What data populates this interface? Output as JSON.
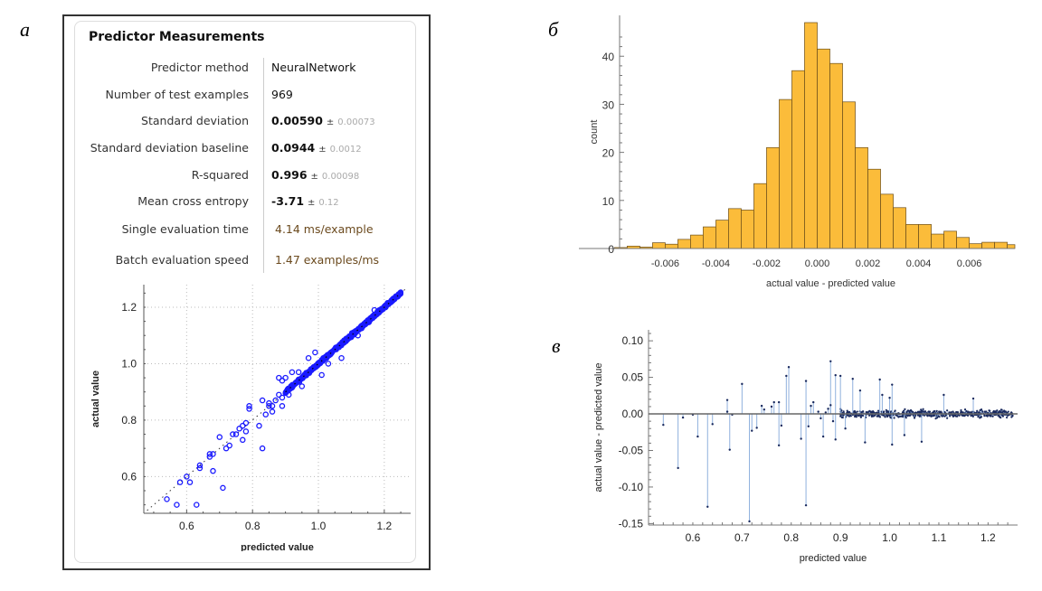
{
  "panel_labels": {
    "a": "а",
    "b": "б",
    "c": "в"
  },
  "measurements": {
    "title": "Predictor Measurements",
    "rows": [
      {
        "key": "Predictor method",
        "value": "NeuralNetwork",
        "pm": "",
        "unc": "",
        "timing": false
      },
      {
        "key": "Number of test examples",
        "value": "969",
        "pm": "",
        "unc": "",
        "timing": false
      },
      {
        "key": "Standard deviation",
        "value": "0.00590",
        "pm": "±",
        "unc": "0.00073",
        "timing": false
      },
      {
        "key": "Standard deviation baseline",
        "value": "0.0944",
        "pm": "±",
        "unc": "0.0012",
        "timing": false
      },
      {
        "key": "R-squared",
        "value": "0.996",
        "pm": "±",
        "unc": "0.00098",
        "timing": false
      },
      {
        "key": "Mean cross entropy",
        "value": "-3.71",
        "pm": "±",
        "unc": "0.12",
        "timing": false
      },
      {
        "key": "Single evaluation time",
        "value": "4.14 ms/example",
        "pm": "",
        "unc": "",
        "timing": true
      },
      {
        "key": "Batch evaluation speed",
        "value": "1.47 examples/ms",
        "pm": "",
        "unc": "",
        "timing": true
      }
    ]
  },
  "colors": {
    "scatter": "#1a1aff",
    "hist_fill": "#fbbc3a",
    "hist_edge": "#6b4e1a",
    "resid_line": "#8fb0dd",
    "resid_point": "#1a2a5e"
  },
  "chart_data": [
    {
      "type": "scatter",
      "title": "",
      "xlabel": "predicted value",
      "ylabel": "actual value",
      "xlim": [
        0.47,
        1.28
      ],
      "ylim": [
        0.47,
        1.28
      ],
      "xticks": [
        "0.6",
        "0.8",
        "1.0",
        "1.2"
      ],
      "yticks": [
        "0.6",
        "0.8",
        "1.0",
        "1.2"
      ],
      "grid": true,
      "reference_line": "y = x (dotted)",
      "outliers": [
        [
          0.54,
          0.52
        ],
        [
          0.57,
          0.5
        ],
        [
          0.58,
          0.58
        ],
        [
          0.6,
          0.6
        ],
        [
          0.61,
          0.58
        ],
        [
          0.63,
          0.5
        ],
        [
          0.64,
          0.63
        ],
        [
          0.64,
          0.64
        ],
        [
          0.67,
          0.68
        ],
        [
          0.67,
          0.67
        ],
        [
          0.68,
          0.62
        ],
        [
          0.68,
          0.68
        ],
        [
          0.7,
          0.74
        ],
        [
          0.71,
          0.56
        ],
        [
          0.72,
          0.7
        ],
        [
          0.73,
          0.71
        ],
        [
          0.74,
          0.75
        ],
        [
          0.75,
          0.75
        ],
        [
          0.76,
          0.77
        ],
        [
          0.77,
          0.78
        ],
        [
          0.77,
          0.73
        ],
        [
          0.78,
          0.79
        ],
        [
          0.78,
          0.76
        ],
        [
          0.79,
          0.84
        ],
        [
          0.79,
          0.85
        ],
        [
          0.82,
          0.78
        ],
        [
          0.83,
          0.7
        ],
        [
          0.83,
          0.87
        ],
        [
          0.84,
          0.82
        ],
        [
          0.85,
          0.85
        ],
        [
          0.85,
          0.86
        ],
        [
          0.86,
          0.85
        ],
        [
          0.86,
          0.83
        ],
        [
          0.87,
          0.87
        ],
        [
          0.88,
          0.95
        ],
        [
          0.88,
          0.89
        ],
        [
          0.89,
          0.94
        ],
        [
          0.89,
          0.88
        ],
        [
          0.89,
          0.85
        ],
        [
          0.9,
          0.95
        ],
        [
          0.91,
          0.89
        ],
        [
          0.92,
          0.97
        ],
        [
          0.94,
          0.97
        ],
        [
          0.95,
          0.92
        ],
        [
          0.97,
          1.02
        ],
        [
          0.99,
          1.04
        ],
        [
          1.01,
          0.96
        ],
        [
          1.03,
          1.0
        ],
        [
          1.07,
          1.02
        ],
        [
          1.12,
          1.1
        ],
        [
          1.17,
          1.19
        ]
      ],
      "dense_band": {
        "x_range": [
          0.9,
          1.25
        ],
        "spread": 0.006
      }
    },
    {
      "type": "bar",
      "title": "",
      "xlabel": "actual value - predicted value",
      "ylabel": "count",
      "xlim": [
        -0.0078,
        0.0078
      ],
      "ylim": [
        0,
        47
      ],
      "xticks": [
        "-0.006",
        "-0.004",
        "-0.002",
        "0.000",
        "0.002",
        "0.004",
        "0.006"
      ],
      "yticks": [
        "0",
        "10",
        "20",
        "30",
        "40"
      ],
      "bin_width": 0.0005,
      "bin_start": -0.0085,
      "values": [
        0,
        0.2,
        0.5,
        0.3,
        1.2,
        0.9,
        1.9,
        2.8,
        4.5,
        5.9,
        8.3,
        8.0,
        13.5,
        21,
        31,
        37,
        47,
        41.5,
        38.5,
        30.5,
        21,
        16.5,
        11.3,
        8.5,
        5,
        5,
        3,
        3.6,
        2.3,
        1,
        1.3,
        1.3,
        0.8
      ]
    },
    {
      "type": "scatter",
      "title": "",
      "xlabel": "predicted value",
      "ylabel": "actual value - predicted value",
      "xlim": [
        0.51,
        1.26
      ],
      "ylim": [
        -0.152,
        0.115
      ],
      "xticks": [
        "0.6",
        "0.7",
        "0.8",
        "0.9",
        "1.0",
        "1.1",
        "1.2"
      ],
      "yticks": [
        "-0.15",
        "-0.10",
        "-0.05",
        "0.00",
        "0.05",
        "0.10"
      ],
      "style": "stems from zero",
      "points": [
        [
          0.54,
          -0.015
        ],
        [
          0.57,
          -0.074
        ],
        [
          0.58,
          -0.005
        ],
        [
          0.6,
          -0.001
        ],
        [
          0.61,
          -0.031
        ],
        [
          0.63,
          -0.127
        ],
        [
          0.64,
          -0.014
        ],
        [
          0.67,
          0.019
        ],
        [
          0.67,
          0.003
        ],
        [
          0.675,
          -0.049
        ],
        [
          0.68,
          -0.001
        ],
        [
          0.7,
          0.041
        ],
        [
          0.715,
          -0.147
        ],
        [
          0.72,
          -0.023
        ],
        [
          0.73,
          -0.019
        ],
        [
          0.74,
          0.011
        ],
        [
          0.745,
          0.006
        ],
        [
          0.76,
          0.01
        ],
        [
          0.765,
          0.016
        ],
        [
          0.775,
          -0.043
        ],
        [
          0.775,
          0.016
        ],
        [
          0.78,
          -0.016
        ],
        [
          0.79,
          0.052
        ],
        [
          0.795,
          0.064
        ],
        [
          0.82,
          -0.034
        ],
        [
          0.83,
          0.045
        ],
        [
          0.83,
          -0.125
        ],
        [
          0.835,
          -0.017
        ],
        [
          0.84,
          0.011
        ],
        [
          0.845,
          0.016
        ],
        [
          0.855,
          0.003
        ],
        [
          0.86,
          -0.006
        ],
        [
          0.865,
          -0.031
        ],
        [
          0.87,
          0.002
        ],
        [
          0.875,
          0.007
        ],
        [
          0.88,
          0.072
        ],
        [
          0.88,
          0.012
        ],
        [
          0.885,
          -0.01
        ],
        [
          0.89,
          -0.035
        ],
        [
          0.89,
          0.053
        ],
        [
          0.9,
          0.052
        ],
        [
          0.91,
          -0.02
        ],
        [
          0.925,
          0.048
        ],
        [
          0.94,
          0.032
        ],
        [
          0.95,
          -0.039
        ],
        [
          0.98,
          0.047
        ],
        [
          0.985,
          0.026
        ],
        [
          1.0,
          0.022
        ],
        [
          1.005,
          0.04
        ],
        [
          1.005,
          -0.042
        ],
        [
          1.03,
          -0.029
        ],
        [
          1.065,
          -0.038
        ],
        [
          1.11,
          0.026
        ],
        [
          1.17,
          0.021
        ]
      ],
      "dense_band": {
        "x_range": [
          0.9,
          1.25
        ],
        "spread": 0.005
      }
    }
  ]
}
